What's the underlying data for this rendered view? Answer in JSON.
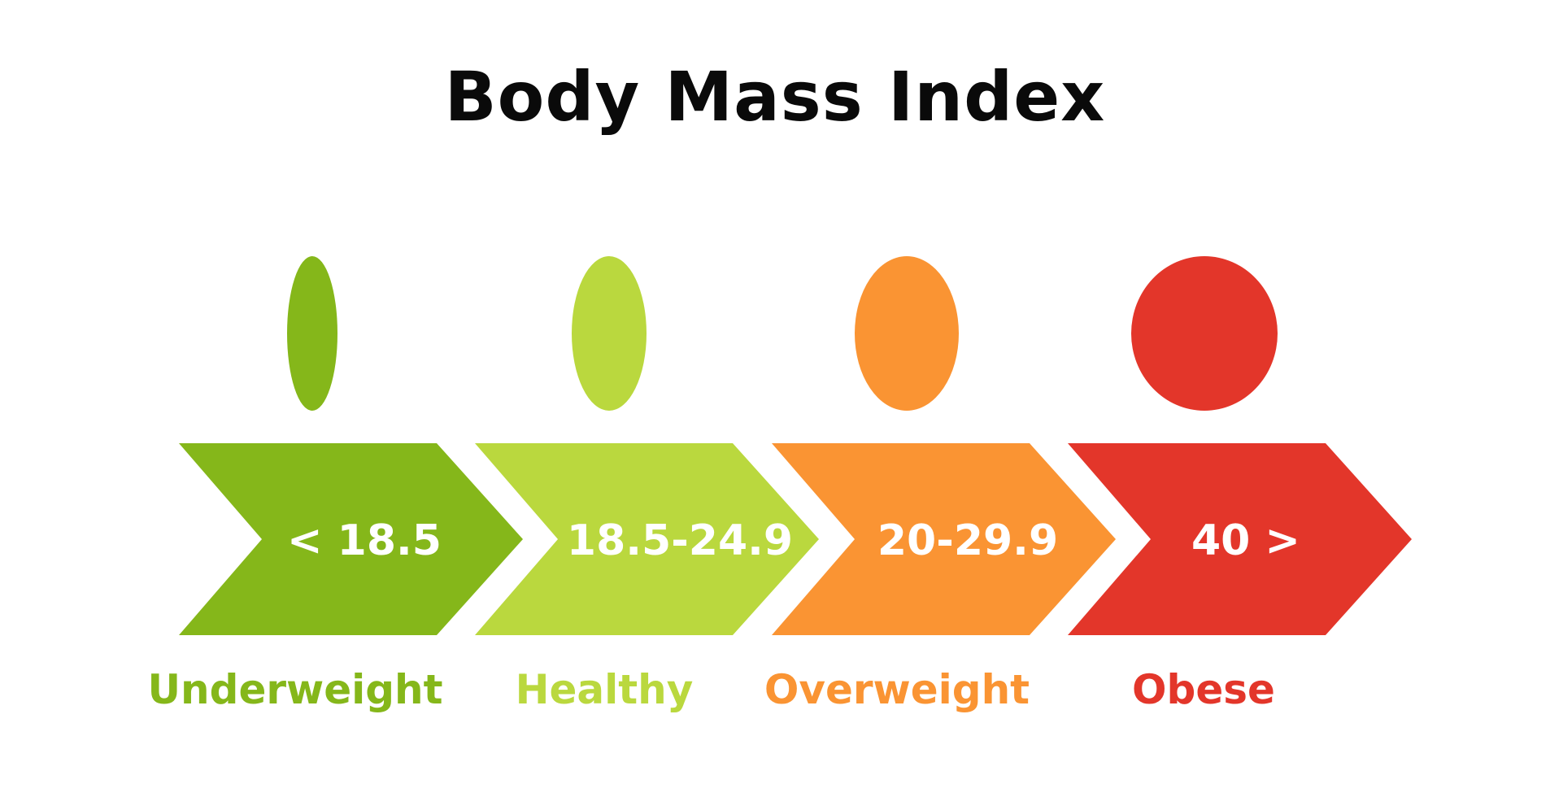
{
  "title": "Body Mass Index",
  "categories": [
    {
      "range": "< 18.5",
      "label": "Underweight",
      "color": "#85b71a",
      "head_width_ratio": 0.33
    },
    {
      "range": "18.5-24.9",
      "label": "Healthy",
      "color": "#bad83e",
      "head_width_ratio": 0.48
    },
    {
      "range": "20-29.9",
      "label": "Overweight",
      "color": "#fa9433",
      "head_width_ratio": 0.67
    },
    {
      "range": "40 >",
      "label": "Obese",
      "color": "#e3362a",
      "head_width_ratio": 0.95
    }
  ]
}
